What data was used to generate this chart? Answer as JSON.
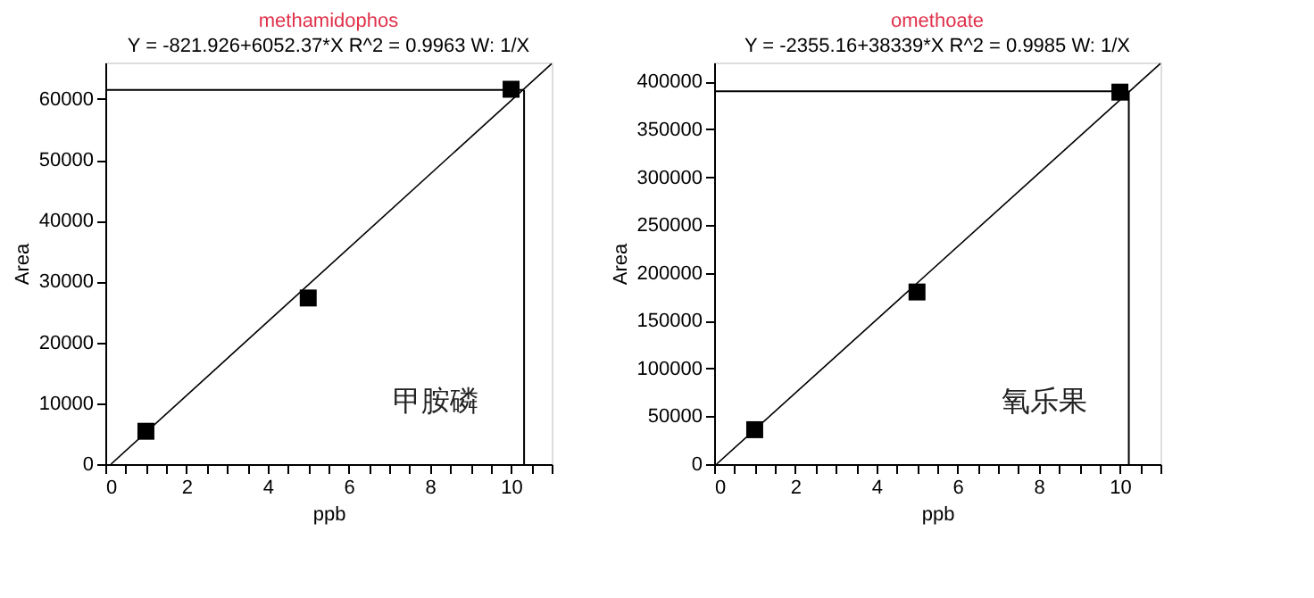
{
  "chart_data": [
    {
      "type": "scatter",
      "title": "methamidophos",
      "subtitle": "Y = -821.926+6052.37*X   R^2 = 0.9963   W: 1/X",
      "xlabel": "ppb",
      "ylabel": "Area",
      "annotations": [
        "甲胺磷"
      ],
      "xlim": [
        0,
        11
      ],
      "ylim": [
        0,
        66000
      ],
      "xticks": [
        0,
        {
          "value": 0.5,
          "label": null
        },
        {
          "value": 1,
          "label": null
        },
        {
          "value": 1.5,
          "label": null
        },
        2,
        {
          "value": 2.5,
          "label": null
        },
        {
          "value": 3,
          "label": null
        },
        {
          "value": 3.5,
          "label": null
        },
        4,
        {
          "value": 4.5,
          "label": null
        },
        {
          "value": 5,
          "label": null
        },
        {
          "value": 5.5,
          "label": null
        },
        6,
        {
          "value": 6.5,
          "label": null
        },
        {
          "value": 7,
          "label": null
        },
        {
          "value": 7.5,
          "label": null
        },
        8,
        {
          "value": 8.5,
          "label": null
        },
        {
          "value": 9,
          "label": null
        },
        {
          "value": 9.5,
          "label": null
        },
        10,
        {
          "value": 10.5,
          "label": null
        },
        {
          "value": 11,
          "label": null
        }
      ],
      "yticks": [
        0,
        10000,
        20000,
        30000,
        40000,
        50000,
        60000
      ],
      "grid": false,
      "ref_lines": [
        {
          "axis": "y",
          "value": 61500,
          "color": "#000000"
        },
        {
          "axis": "x",
          "value": 10.32,
          "color": "#000000"
        }
      ],
      "series": [
        {
          "color": "#000000",
          "marker": "square",
          "x": [
            1,
            5,
            10
          ],
          "values": [
            5400,
            27300,
            61600
          ]
        },
        {
          "type": "line",
          "color": "#000000",
          "x": [
            0.14,
            11
          ],
          "values": [
            0,
            65800
          ]
        }
      ]
    },
    {
      "type": "scatter",
      "title": "omethoate",
      "subtitle": "Y = -2355.16+38339*X   R^2 = 0.9985   W: 1/X",
      "xlabel": "ppb",
      "ylabel": "Area",
      "annotations": [
        "氧乐果"
      ],
      "xlim": [
        0,
        11
      ],
      "ylim": [
        0,
        420000
      ],
      "xticks": [
        0,
        {
          "value": 0.5,
          "label": null
        },
        {
          "value": 1,
          "label": null
        },
        {
          "value": 1.5,
          "label": null
        },
        2,
        {
          "value": 2.5,
          "label": null
        },
        {
          "value": 3,
          "label": null
        },
        {
          "value": 3.5,
          "label": null
        },
        4,
        {
          "value": 4.5,
          "label": null
        },
        {
          "value": 5,
          "label": null
        },
        {
          "value": 5.5,
          "label": null
        },
        6,
        {
          "value": 6.5,
          "label": null
        },
        {
          "value": 7,
          "label": null
        },
        {
          "value": 7.5,
          "label": null
        },
        8,
        {
          "value": 8.5,
          "label": null
        },
        {
          "value": 9,
          "label": null
        },
        {
          "value": 9.5,
          "label": null
        },
        10,
        {
          "value": 10.5,
          "label": null
        },
        {
          "value": 11,
          "label": null
        }
      ],
      "yticks": [
        0,
        50000,
        100000,
        150000,
        200000,
        250000,
        300000,
        350000,
        400000
      ],
      "grid": false,
      "ref_lines": [
        {
          "axis": "y",
          "value": 390000,
          "color": "#000000"
        },
        {
          "axis": "x",
          "value": 10.22,
          "color": "#000000"
        }
      ],
      "series": [
        {
          "color": "#000000",
          "marker": "square",
          "x": [
            1,
            5,
            10
          ],
          "values": [
            36000,
            180000,
            389000
          ]
        },
        {
          "type": "line",
          "color": "#000000",
          "x": [
            0.06,
            11
          ],
          "values": [
            0,
            419000
          ]
        }
      ]
    }
  ]
}
